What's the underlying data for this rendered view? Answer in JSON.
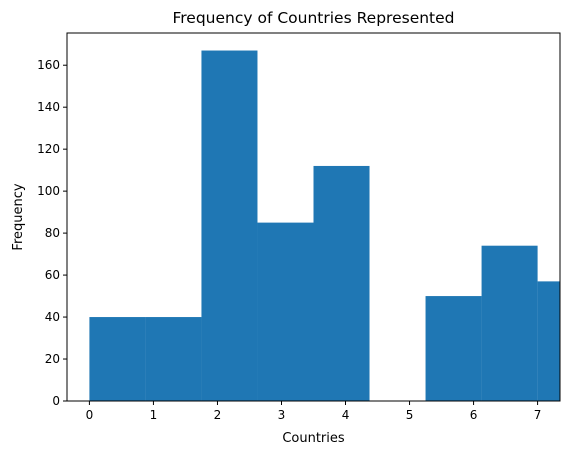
{
  "chart_data": {
    "type": "bar",
    "title": "Frequency of Countries Represented",
    "xlabel": "Countries",
    "ylabel": "Frequency",
    "bins": [
      {
        "start": 0.0,
        "end": 0.875,
        "value": 40
      },
      {
        "start": 0.875,
        "end": 1.75,
        "value": 40
      },
      {
        "start": 1.75,
        "end": 2.625,
        "value": 167
      },
      {
        "start": 2.625,
        "end": 3.5,
        "value": 85
      },
      {
        "start": 3.5,
        "end": 4.375,
        "value": 112
      },
      {
        "start": 4.375,
        "end": 5.25,
        "value": 0
      },
      {
        "start": 5.25,
        "end": 6.125,
        "value": 50
      },
      {
        "start": 6.125,
        "end": 7.0,
        "value": 74
      },
      {
        "start": 7.0,
        "end": 7.875,
        "value": 57
      }
    ],
    "xlim": [
      -0.35,
      7.35
    ],
    "ylim": [
      0,
      175.35
    ],
    "xticks": [
      0,
      1,
      2,
      3,
      4,
      5,
      6,
      7
    ],
    "yticks": [
      0,
      20,
      40,
      60,
      80,
      100,
      120,
      140,
      160
    ],
    "bar_color": "#1f77b4",
    "grid": false,
    "legend": "none"
  }
}
